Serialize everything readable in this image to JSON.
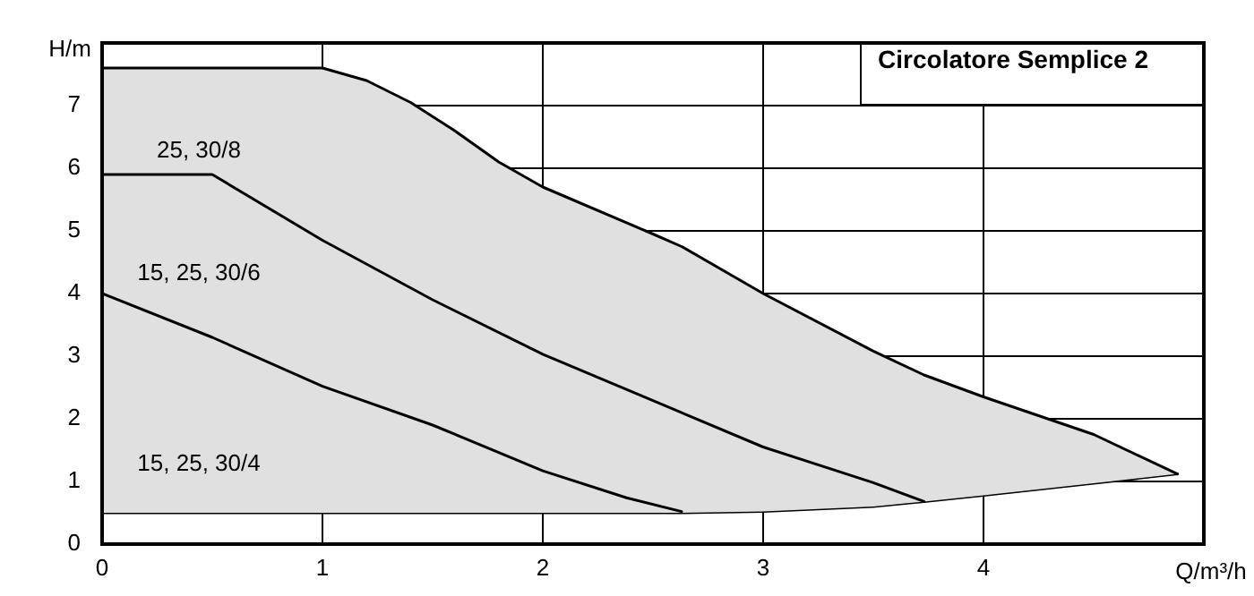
{
  "chart_data": {
    "type": "line",
    "title": "Circolatore Semplice 2",
    "xlabel": "Q/m³/h",
    "ylabel": "H/m",
    "xlim": [
      0,
      5
    ],
    "ylim": [
      0,
      8
    ],
    "xticks": [
      0,
      1,
      2,
      3,
      4
    ],
    "yticks": [
      0,
      1,
      2,
      3,
      4,
      5,
      6,
      7
    ],
    "grid": true,
    "legend": false,
    "marker": "none",
    "line_style": "solid",
    "series": [
      {
        "type": "line",
        "color": "#000000",
        "x": [
          0,
          1,
          1.2,
          1.4,
          1.6,
          1.8,
          2,
          2.5,
          2.63,
          3,
          3.5,
          3.73,
          4,
          4.5,
          4.88
        ],
        "values": [
          0.5,
          0.5,
          0.5,
          0.5,
          0.5,
          0.5,
          0.5,
          0.5,
          0.5,
          0.52,
          0.6,
          0.68,
          0.78,
          0.97,
          1.12
        ]
      },
      {
        "type": "area",
        "color": "#e0e0e0",
        "x": [
          0,
          1,
          1.2,
          1.4,
          1.6,
          1.8,
          2,
          2.5,
          2.63,
          3,
          3.5,
          3.73,
          4,
          4.5,
          4.88
        ],
        "values": [
          7.6,
          7.6,
          7.4,
          7.05,
          6.6,
          6.1,
          5.7,
          4.95,
          4.75,
          4.0,
          3.08,
          2.7,
          2.35,
          1.75,
          1.12
        ]
      },
      {
        "type": "line",
        "color": "#000000",
        "x": [
          0,
          0.5,
          1,
          1.5,
          2,
          2.5,
          3,
          3.5,
          3.73
        ],
        "values": [
          5.9,
          5.9,
          4.85,
          3.9,
          3.03,
          2.29,
          1.55,
          0.98,
          0.68
        ]
      },
      {
        "type": "line",
        "color": "#000000",
        "x": [
          0,
          0.5,
          1,
          1.5,
          2,
          2.38,
          2.63
        ],
        "values": [
          4,
          3.3,
          2.52,
          1.9,
          1.17,
          0.74,
          0.52
        ]
      }
    ],
    "annotations": [
      "25, 30/8",
      "15, 25, 30/6",
      "15, 25, 30/4"
    ]
  }
}
